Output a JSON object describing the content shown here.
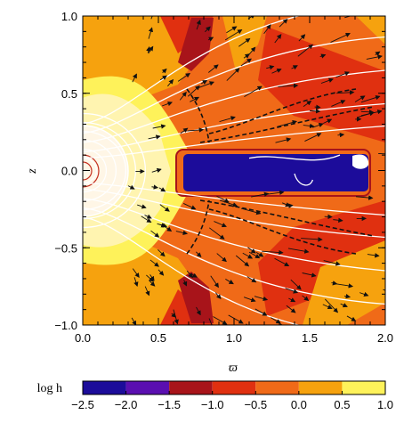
{
  "chart_data": {
    "type": "heatmap",
    "title": "",
    "xlabel": "ϖ",
    "ylabel": "z",
    "xlim": [
      0.0,
      2.0
    ],
    "ylim": [
      -1.0,
      1.0
    ],
    "x_ticks": [
      "0.0",
      "0.5",
      "1.0",
      "1.5",
      "2.0"
    ],
    "y_ticks": [
      "−1.0",
      "−0.5",
      "0.0",
      "0.5",
      "1.0"
    ],
    "overlays": [
      "velocity-vectors",
      "magnetic-field-lines"
    ],
    "regions": [
      {
        "name": "star",
        "x_range": [
          0.0,
          0.3
        ],
        "z_range": [
          -0.3,
          0.3
        ],
        "level": 0.5
      },
      {
        "name": "disk",
        "x_range": [
          0.62,
          1.9
        ],
        "z_range": [
          -0.15,
          0.15
        ],
        "level": -2.5
      }
    ],
    "colorbar": {
      "label": "log h",
      "levels": [
        -2.5,
        -2.0,
        -1.5,
        -1.0,
        -0.5,
        0.0,
        0.5,
        1.0
      ],
      "tick_labels": [
        "−2.5",
        "−2.0",
        "−1.5",
        "−1.0",
        "−0.5",
        "0.0",
        "0.5",
        "1.0"
      ],
      "colors": [
        "#1c0c9a",
        "#5a0fb0",
        "#a8141a",
        "#e03010",
        "#f06a18",
        "#f6a20e",
        "#fef25a"
      ]
    }
  }
}
